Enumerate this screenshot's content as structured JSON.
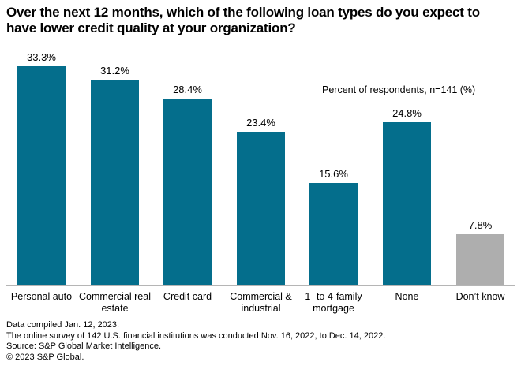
{
  "header": {
    "title": "Over the next 12 months, which of the following loan types do you expect to have lower credit quality at your organization?",
    "title_lines": [
      "Over the next 12 months, which of the following loan types do you expect to",
      "have lower credit quality at your organization?"
    ]
  },
  "chart_data": {
    "type": "bar",
    "title": "Over the next 12 months, which of the following loan types do you expect to have lower credit quality at your organization?",
    "annotation": "Percent of respondents, n=141 (%)",
    "categories": [
      "Personal auto",
      "Commercial real estate",
      "Credit card",
      "Commercial & industrial",
      "1- to 4-family mortgage",
      "None",
      "Don’t know"
    ],
    "values": [
      33.3,
      31.2,
      28.4,
      23.4,
      15.6,
      24.8,
      7.8
    ],
    "value_labels": [
      "33.3%",
      "31.2%",
      "28.4%",
      "23.4%",
      "15.6%",
      "24.8%",
      "7.8%"
    ],
    "bar_colors": [
      "#046E8C",
      "#046E8C",
      "#046E8C",
      "#046E8C",
      "#046E8C",
      "#046E8C",
      "#AEAEAE"
    ],
    "xlabel": "",
    "ylabel": "Percent of respondents (%)",
    "ylim": [
      0,
      35
    ],
    "grid": false,
    "legend": "none",
    "value_labels_position": "above-bars",
    "y_axis_visible": false
  },
  "colors": {
    "bar_teal": "#046E8C",
    "bar_gray": "#AEAEAE",
    "axis_line": "#B5B5B5",
    "text": "#000000",
    "background": "#FFFFFF"
  },
  "footer": {
    "lines": [
      "Data compiled Jan. 12, 2023.",
      "The online survey of 142 U.S. financial institutions was conducted Nov. 16, 2022, to Dec. 14, 2022.",
      "Source: S&P Global Market Intelligence.",
      "© 2023 S&P Global."
    ]
  }
}
